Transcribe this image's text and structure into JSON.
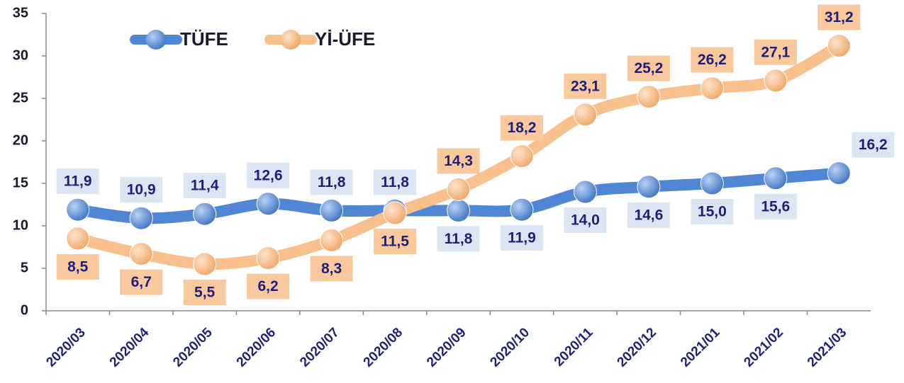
{
  "chart_data": {
    "type": "line",
    "categories": [
      "2020/03",
      "2020/04",
      "2020/05",
      "2020/06",
      "2020/07",
      "2020/08",
      "2020/09",
      "2020/10",
      "2020/11",
      "2020/12",
      "2021/01",
      "2021/02",
      "2021/03"
    ],
    "series": [
      {
        "name": "TÜFE",
        "color": "#4f86d6",
        "label_box": "#dce6f2",
        "values": [
          11.9,
          10.9,
          11.4,
          12.6,
          11.8,
          11.8,
          11.8,
          11.9,
          14.0,
          14.6,
          15.0,
          15.6,
          16.2
        ],
        "value_labels": [
          "11,9",
          "10,9",
          "11,4",
          "12,6",
          "11,8",
          "11,8",
          "11,8",
          "11,9",
          "14,0",
          "14,6",
          "15,0",
          "15,6",
          "16,2"
        ]
      },
      {
        "name": "Yİ-ÜFE",
        "color": "#f9bf8c",
        "label_box": "#f9c89d",
        "values": [
          8.5,
          6.7,
          5.5,
          6.2,
          8.3,
          11.5,
          14.3,
          18.2,
          23.1,
          25.2,
          26.2,
          27.1,
          31.2
        ],
        "value_labels": [
          "8,5",
          "6,7",
          "5,5",
          "6,2",
          "8,3",
          "11,5",
          "14,3",
          "18,2",
          "23,1",
          "25,2",
          "26,2",
          "27,1",
          "31,2"
        ]
      }
    ],
    "ylim": [
      0,
      35
    ],
    "yticks": [
      0,
      5,
      10,
      15,
      20,
      25,
      30,
      35
    ],
    "legend": "top-left"
  }
}
